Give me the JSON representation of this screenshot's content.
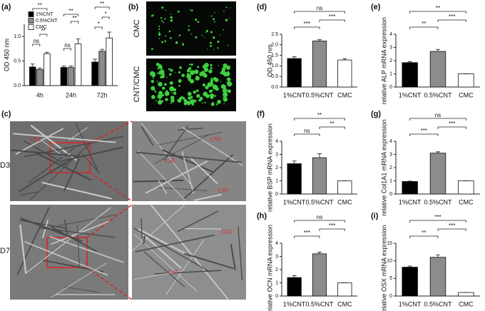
{
  "chart_data": [
    {
      "type": "grouped_bar",
      "panel": "(a)",
      "ylabel": "OD 450 nm",
      "categories": [
        "4h",
        "24h",
        "72h"
      ],
      "series": [
        {
          "name": "1%CNT",
          "color": "#000000",
          "values": [
            0.38,
            0.37,
            0.48
          ],
          "errors": [
            0.06,
            0.03,
            0.06
          ]
        },
        {
          "name": "0.5%CNT",
          "color": "#8c8c8c",
          "values": [
            0.33,
            0.37,
            0.7
          ],
          "errors": [
            0.03,
            0.03,
            0.04
          ]
        },
        {
          "name": "CMC",
          "color": "#ffffff",
          "values": [
            0.65,
            0.85,
            0.97
          ],
          "errors": [
            0.03,
            0.1,
            0.12
          ]
        }
      ],
      "ylim": [
        0,
        1.25
      ],
      "yticks": [
        {
          "value": 0,
          "label": "0.0"
        },
        {
          "value": 0.5,
          "label": "0.5"
        },
        {
          "value": 1,
          "label": "1.0"
        }
      ],
      "annotations": [
        "**",
        "ns",
        "**",
        "**",
        "**",
        "ns",
        "**",
        "*",
        "*"
      ]
    },
    {
      "type": "bar",
      "panel": "(d)",
      "ylabel": "OD 450 nm",
      "categories": [
        "1%CNT",
        "0.5%CNT",
        "CMC"
      ],
      "colors": [
        "#000000",
        "#8c8c8c",
        "#ffffff"
      ],
      "values": [
        1.35,
        2.18,
        1.28
      ],
      "errors": [
        0.08,
        0.06,
        0.06
      ],
      "ylim": [
        0,
        2.5
      ],
      "yticks": [
        {
          "value": 0,
          "label": "0.0"
        },
        {
          "value": 0.5,
          "label": "0.5"
        },
        {
          "value": 1,
          "label": "1.0"
        },
        {
          "value": 1.5,
          "label": "1.5"
        },
        {
          "value": 2,
          "label": "2.0"
        },
        {
          "value": 2.5,
          "label": "2.5"
        }
      ],
      "annotations": [
        "ns",
        "***",
        "***"
      ]
    },
    {
      "type": "bar",
      "panel": "(e)",
      "ylabel": "relative ALP mRNA expression",
      "categories": [
        "1%CNT",
        "0.5%CNT",
        "CMC"
      ],
      "colors": [
        "#000000",
        "#8c8c8c",
        "#ffffff"
      ],
      "values": [
        1.85,
        2.7,
        1.0
      ],
      "errors": [
        0.08,
        0.15,
        0.0
      ],
      "ylim": [
        0,
        4
      ],
      "yticks": [
        0,
        1,
        2,
        3,
        4
      ],
      "annotations": [
        "**",
        "**",
        "***"
      ]
    },
    {
      "type": "bar",
      "panel": "(f)",
      "ylabel": "relative BSP mRNA expression",
      "categories": [
        "1%CNT",
        "0.5%CNT",
        "CMC"
      ],
      "colors": [
        "#000000",
        "#8c8c8c",
        "#ffffff"
      ],
      "values": [
        2.3,
        2.75,
        1.0
      ],
      "errors": [
        0.2,
        0.3,
        0.0
      ],
      "ylim": [
        0,
        4
      ],
      "yticks": [
        0,
        1,
        2,
        3,
        4
      ],
      "annotations": [
        "**",
        "ns",
        "**"
      ]
    },
    {
      "type": "bar",
      "panel": "(g)",
      "ylabel": "relative Col1A1 mRNA expression",
      "categories": [
        "1%CNT",
        "0.5%CNT",
        "CMC"
      ],
      "colors": [
        "#000000",
        "#8c8c8c",
        "#ffffff"
      ],
      "values": [
        0.95,
        3.1,
        1.0
      ],
      "errors": [
        0.03,
        0.1,
        0.0
      ],
      "ylim": [
        0,
        4
      ],
      "yticks": [
        0,
        1,
        2,
        3,
        4
      ],
      "annotations": [
        "ns",
        "***",
        "***"
      ]
    },
    {
      "type": "bar",
      "panel": "(h)",
      "ylabel": "relative OCN mRNA expression",
      "categories": [
        "1%CNT",
        "0.5%CNT",
        "CMC"
      ],
      "colors": [
        "#000000",
        "#8c8c8c",
        "#ffffff"
      ],
      "values": [
        1.4,
        3.2,
        1.0
      ],
      "errors": [
        0.15,
        0.12,
        0.0
      ],
      "ylim": [
        0,
        4
      ],
      "yticks": [
        0,
        1,
        2,
        3,
        4
      ],
      "annotations": [
        "ns",
        "***",
        "***"
      ]
    },
    {
      "type": "bar",
      "panel": "(i)",
      "ylabel": "relative OSX mRNA expression",
      "categories": [
        "1%CNT",
        "0.5%CNT",
        "CMC"
      ],
      "colors": [
        "#000000",
        "#8c8c8c",
        "#ffffff"
      ],
      "values": [
        8.2,
        11,
        1.0
      ],
      "errors": [
        0.3,
        0.7,
        0.0
      ],
      "ylim": [
        0,
        15
      ],
      "yticks": [
        0,
        5,
        10,
        15
      ],
      "annotations": [
        "***",
        "**",
        "***"
      ]
    }
  ],
  "images": {
    "b": {
      "panel": "(b)",
      "labels": [
        "CMC",
        "CNT/CMC"
      ]
    },
    "c": {
      "panel": "(c)",
      "rows": [
        "D3",
        "D7"
      ],
      "annotations": [
        "CNT",
        "Cell",
        "CNT",
        "CNT",
        "CNT",
        "Cell"
      ]
    }
  }
}
